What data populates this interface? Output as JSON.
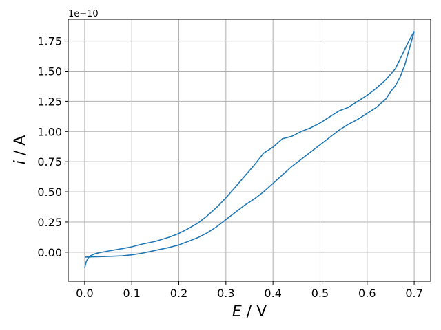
{
  "chart_data": {
    "type": "line",
    "title": "",
    "xlabel": {
      "symbol": "E",
      "unit": " / V"
    },
    "ylabel": {
      "symbol": "i",
      "unit": " / A"
    },
    "y_offset_text": "1e−10",
    "xlim": [
      -0.035,
      0.735
    ],
    "ylim": [
      -0.24,
      1.93
    ],
    "xticks": [
      0.0,
      0.1,
      0.2,
      0.3,
      0.4,
      0.5,
      0.6,
      0.7
    ],
    "xtick_labels": [
      "0.0",
      "0.1",
      "0.2",
      "0.3",
      "0.4",
      "0.5",
      "0.6",
      "0.7"
    ],
    "yticks": [
      0.0,
      0.25,
      0.5,
      0.75,
      1.0,
      1.25,
      1.5,
      1.75
    ],
    "ytick_labels": [
      "0.00",
      "0.25",
      "0.50",
      "0.75",
      "1.00",
      "1.25",
      "1.50",
      "1.75"
    ],
    "grid": true,
    "colors": {
      "series": "#1f77b4",
      "grid": "#b0b0b0"
    },
    "series": [
      {
        "x": [
          0.0,
          0.003,
          0.007,
          0.012,
          0.02,
          0.03,
          0.05,
          0.08,
          0.1,
          0.12,
          0.15,
          0.18,
          0.2,
          0.22,
          0.24,
          0.26,
          0.28,
          0.3,
          0.32,
          0.34,
          0.36,
          0.38,
          0.4,
          0.42,
          0.44,
          0.46,
          0.48,
          0.5,
          0.52,
          0.54,
          0.55,
          0.56,
          0.58,
          0.6,
          0.62,
          0.64,
          0.66,
          0.67,
          0.68,
          0.69,
          0.7
        ],
        "y": [
          -0.13,
          -0.08,
          -0.05,
          -0.03,
          -0.015,
          -0.005,
          0.01,
          0.03,
          0.045,
          0.065,
          0.09,
          0.125,
          0.155,
          0.195,
          0.24,
          0.3,
          0.37,
          0.45,
          0.54,
          0.63,
          0.72,
          0.82,
          0.87,
          0.94,
          0.96,
          1.0,
          1.03,
          1.07,
          1.12,
          1.17,
          1.185,
          1.2,
          1.25,
          1.3,
          1.36,
          1.43,
          1.52,
          1.6,
          1.68,
          1.76,
          1.83
        ]
      },
      {
        "x": [
          0.0,
          0.05,
          0.08,
          0.1,
          0.12,
          0.15,
          0.18,
          0.2,
          0.22,
          0.24,
          0.26,
          0.28,
          0.3,
          0.32,
          0.34,
          0.36,
          0.38,
          0.4,
          0.42,
          0.44,
          0.46,
          0.48,
          0.5,
          0.52,
          0.54,
          0.56,
          0.58,
          0.6,
          0.62,
          0.64,
          0.65,
          0.66,
          0.67,
          0.68,
          0.69,
          0.7
        ],
        "y": [
          -0.04,
          -0.035,
          -0.03,
          -0.022,
          -0.01,
          0.015,
          0.04,
          0.06,
          0.09,
          0.12,
          0.16,
          0.21,
          0.27,
          0.33,
          0.39,
          0.44,
          0.5,
          0.57,
          0.64,
          0.71,
          0.77,
          0.83,
          0.89,
          0.95,
          1.01,
          1.06,
          1.1,
          1.15,
          1.2,
          1.27,
          1.33,
          1.38,
          1.45,
          1.55,
          1.69,
          1.83
        ]
      }
    ]
  }
}
